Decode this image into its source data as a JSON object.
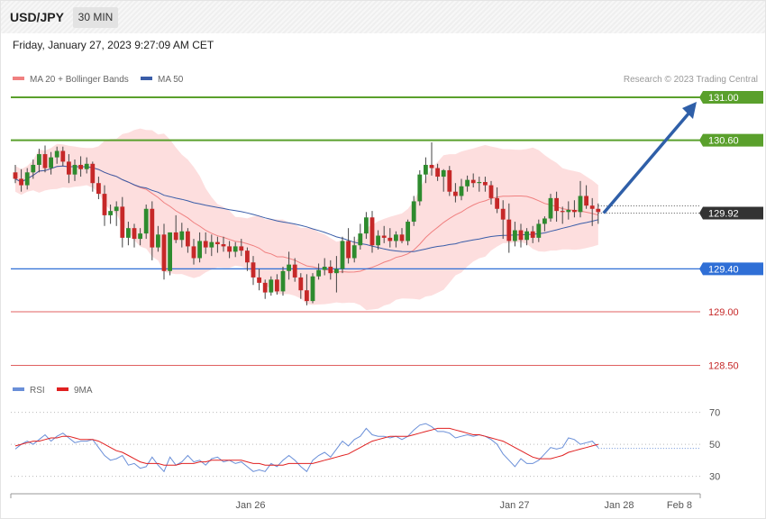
{
  "header": {
    "symbol": "USD/JPY",
    "timeframe": "30 MIN",
    "timestamp": "Friday, January 27, 2023 9:27:09 AM CET"
  },
  "legend": {
    "ma20_label": "MA 20 + Bollinger Bands",
    "ma50_label": "MA 50",
    "rsi_label": "RSI",
    "rsi_ma_label": "9MA"
  },
  "colors": {
    "ma20": "#f08080",
    "ma50": "#3a5da8",
    "bollinger_fill": "#fdd8d8",
    "bull_candle": "#2e8b2e",
    "bear_candle": "#c62828",
    "resistance": "#5aa02c",
    "support": "#2f6fd6",
    "lower_support": "#e06060",
    "current_price": "#333333",
    "arrow": "#2f5fa8",
    "rsi": "#6a8fd8",
    "rsi_ma": "#e02020"
  },
  "copyright": "Research © 2023 Trading Central",
  "chart_data": [
    {
      "type": "candlestick",
      "ylim": [
        128.4,
        131.15
      ],
      "current_price": "129.92",
      "levels": [
        {
          "label": "131.00",
          "value": 131.0,
          "kind": "resistance"
        },
        {
          "label": "130.60",
          "value": 130.6,
          "kind": "resistance"
        },
        {
          "label": "129.92",
          "value": 129.92,
          "kind": "current"
        },
        {
          "label": "129.40",
          "value": 129.4,
          "kind": "support"
        },
        {
          "label": "129.00",
          "value": 129.0,
          "kind": "lower-support"
        },
        {
          "label": "128.50",
          "value": 128.5,
          "kind": "lower-support"
        }
      ],
      "arrow": {
        "from": 129.92,
        "to": 130.95
      },
      "candles": [
        [
          130.3,
          130.37,
          130.2,
          130.24
        ],
        [
          130.24,
          130.33,
          130.12,
          130.18
        ],
        [
          130.18,
          130.34,
          130.14,
          130.3
        ],
        [
          130.3,
          130.42,
          130.24,
          130.37
        ],
        [
          130.37,
          130.52,
          130.3,
          130.47
        ],
        [
          130.47,
          130.55,
          130.3,
          130.34
        ],
        [
          130.34,
          130.49,
          130.28,
          130.44
        ],
        [
          130.44,
          130.54,
          130.38,
          130.5
        ],
        [
          130.5,
          130.54,
          130.36,
          130.4
        ],
        [
          130.4,
          130.47,
          130.2,
          130.28
        ],
        [
          130.28,
          130.42,
          130.22,
          130.37
        ],
        [
          130.37,
          130.45,
          130.26,
          130.33
        ],
        [
          130.33,
          130.44,
          130.29,
          130.38
        ],
        [
          130.38,
          130.4,
          130.12,
          130.2
        ],
        [
          130.2,
          130.26,
          130.05,
          130.1
        ],
        [
          130.1,
          130.18,
          129.8,
          129.9
        ],
        [
          129.9,
          130.0,
          129.82,
          129.94
        ],
        [
          129.94,
          130.03,
          129.8,
          129.98
        ],
        [
          129.98,
          130.07,
          129.6,
          129.69
        ],
        [
          129.69,
          129.84,
          129.62,
          129.78
        ],
        [
          129.78,
          129.82,
          129.6,
          129.68
        ],
        [
          129.68,
          129.78,
          129.62,
          129.73
        ],
        [
          129.73,
          130.0,
          129.68,
          129.96
        ],
        [
          129.96,
          130.03,
          129.48,
          129.6
        ],
        [
          129.6,
          129.8,
          129.56,
          129.72
        ],
        [
          129.72,
          129.82,
          129.3,
          129.38
        ],
        [
          129.38,
          129.74,
          129.34,
          129.74
        ],
        [
          129.74,
          129.9,
          129.64,
          129.67
        ],
        [
          129.67,
          129.83,
          129.6,
          129.75
        ],
        [
          129.75,
          129.78,
          129.55,
          129.61
        ],
        [
          129.61,
          129.68,
          129.44,
          129.5
        ],
        [
          129.5,
          129.74,
          129.46,
          129.66
        ],
        [
          129.66,
          129.74,
          129.54,
          129.6
        ],
        [
          129.6,
          129.72,
          129.52,
          129.65
        ],
        [
          129.65,
          129.7,
          129.55,
          129.63
        ],
        [
          129.63,
          129.7,
          129.56,
          129.61
        ],
        [
          129.61,
          129.66,
          129.5,
          129.56
        ],
        [
          129.56,
          129.65,
          129.51,
          129.61
        ],
        [
          129.61,
          129.68,
          129.52,
          129.57
        ],
        [
          129.57,
          129.6,
          129.38,
          129.46
        ],
        [
          129.46,
          129.52,
          129.25,
          129.32
        ],
        [
          129.32,
          129.4,
          129.2,
          129.27
        ],
        [
          129.27,
          129.3,
          129.12,
          129.18
        ],
        [
          129.18,
          129.33,
          129.15,
          129.3
        ],
        [
          129.3,
          129.35,
          129.16,
          129.19
        ],
        [
          129.19,
          129.42,
          129.15,
          129.38
        ],
        [
          129.38,
          129.56,
          129.3,
          129.44
        ],
        [
          129.44,
          129.5,
          129.28,
          129.32
        ],
        [
          129.32,
          129.36,
          129.12,
          129.2
        ],
        [
          129.2,
          129.35,
          129.06,
          129.1
        ],
        [
          129.1,
          129.36,
          129.08,
          129.33
        ],
        [
          129.33,
          129.45,
          129.3,
          129.39
        ],
        [
          129.39,
          129.5,
          129.34,
          129.42
        ],
        [
          129.42,
          129.48,
          129.3,
          129.36
        ],
        [
          129.36,
          129.52,
          129.18,
          129.4
        ],
        [
          129.4,
          129.7,
          129.36,
          129.66
        ],
        [
          129.66,
          129.78,
          129.45,
          129.5
        ],
        [
          129.5,
          129.7,
          129.46,
          129.62
        ],
        [
          129.62,
          129.82,
          129.58,
          129.73
        ],
        [
          129.73,
          129.93,
          129.68,
          129.88
        ],
        [
          129.88,
          129.94,
          129.55,
          129.62
        ],
        [
          129.62,
          129.76,
          129.58,
          129.71
        ],
        [
          129.71,
          129.8,
          129.64,
          129.69
        ],
        [
          129.69,
          129.78,
          129.6,
          129.66
        ],
        [
          129.66,
          129.75,
          129.6,
          129.72
        ],
        [
          129.72,
          129.78,
          129.64,
          129.66
        ],
        [
          129.66,
          129.86,
          129.62,
          129.84
        ],
        [
          129.84,
          130.08,
          129.8,
          130.03
        ],
        [
          130.03,
          130.32,
          129.99,
          130.28
        ],
        [
          130.28,
          130.44,
          130.2,
          130.37
        ],
        [
          130.37,
          130.58,
          130.27,
          130.34
        ],
        [
          130.34,
          130.38,
          130.22,
          130.26
        ],
        [
          130.26,
          130.33,
          130.12,
          130.32
        ],
        [
          130.32,
          130.36,
          130.08,
          130.12
        ],
        [
          130.12,
          130.2,
          130.02,
          130.08
        ],
        [
          130.08,
          130.24,
          130.04,
          130.17
        ],
        [
          130.17,
          130.27,
          130.12,
          130.23
        ],
        [
          130.23,
          130.29,
          130.16,
          130.2
        ],
        [
          130.2,
          130.26,
          130.12,
          130.21
        ],
        [
          130.21,
          130.26,
          130.12,
          130.18
        ],
        [
          130.18,
          130.22,
          130.0,
          130.06
        ],
        [
          130.06,
          130.16,
          129.92,
          129.96
        ],
        [
          129.96,
          130.04,
          129.68,
          129.86
        ],
        [
          129.86,
          130.01,
          129.55,
          129.66
        ],
        [
          129.66,
          129.84,
          129.61,
          129.76
        ],
        [
          129.76,
          129.82,
          129.6,
          129.67
        ],
        [
          129.67,
          129.78,
          129.62,
          129.75
        ],
        [
          129.75,
          129.8,
          129.64,
          129.69
        ],
        [
          129.69,
          129.86,
          129.65,
          129.82
        ],
        [
          129.82,
          129.89,
          129.75,
          129.87
        ],
        [
          129.87,
          130.1,
          129.84,
          130.06
        ],
        [
          130.06,
          130.12,
          129.84,
          129.94
        ],
        [
          129.94,
          129.98,
          129.82,
          129.93
        ],
        [
          129.93,
          130.03,
          129.86,
          129.95
        ],
        [
          129.95,
          130.04,
          129.88,
          129.93
        ],
        [
          129.93,
          130.22,
          129.88,
          130.08
        ],
        [
          130.08,
          130.18,
          129.96,
          129.99
        ],
        [
          129.99,
          130.06,
          129.8,
          129.96
        ],
        [
          129.96,
          130.01,
          129.82,
          129.93
        ]
      ]
    },
    {
      "type": "line",
      "name_labels": [
        "RSI",
        "9MA"
      ],
      "ylim": [
        23,
        76
      ],
      "yticks": [
        30,
        50,
        70
      ],
      "x_labels": [
        "Jan 26",
        "Jan 27",
        "Jan 28",
        "Feb 8"
      ],
      "rsi": [
        47,
        50,
        52,
        50,
        53,
        56,
        52,
        55,
        57,
        54,
        51,
        52,
        52,
        53,
        48,
        43,
        40,
        41,
        43,
        37,
        38,
        35,
        36,
        42,
        37,
        33,
        42,
        37,
        39,
        43,
        39,
        40,
        37,
        41,
        42,
        39,
        40,
        38,
        39,
        36,
        33,
        34,
        33,
        38,
        36,
        40,
        43,
        40,
        36,
        33,
        40,
        43,
        45,
        42,
        47,
        52,
        49,
        53,
        55,
        60,
        56,
        55,
        55,
        54,
        55,
        53,
        55,
        59,
        62,
        63,
        61,
        58,
        58,
        57,
        54,
        55,
        56,
        55,
        56,
        55,
        53,
        50,
        44,
        40,
        36,
        41,
        38,
        38,
        40,
        44,
        48,
        47,
        48,
        54,
        53,
        50,
        51,
        52,
        48
      ],
      "rsi_ma": [
        49,
        50,
        51,
        52,
        52,
        53,
        54,
        54,
        55,
        55,
        54,
        53,
        53,
        53,
        52,
        50,
        48,
        46,
        45,
        43,
        41,
        39,
        38,
        38,
        38,
        37,
        37,
        37,
        38,
        38,
        38,
        39,
        39,
        40,
        40,
        40,
        40,
        40,
        40,
        39,
        38,
        38,
        37,
        37,
        37,
        37,
        38,
        38,
        38,
        38,
        38,
        39,
        40,
        41,
        42,
        43,
        44,
        46,
        48,
        50,
        52,
        53,
        54,
        55,
        55,
        55,
        55,
        56,
        57,
        58,
        59,
        60,
        60,
        60,
        59,
        58,
        57,
        56,
        56,
        55,
        54,
        53,
        52,
        50,
        48,
        46,
        44,
        42,
        41,
        41,
        41,
        42,
        43,
        45,
        46,
        47,
        48,
        49,
        50
      ]
    }
  ]
}
